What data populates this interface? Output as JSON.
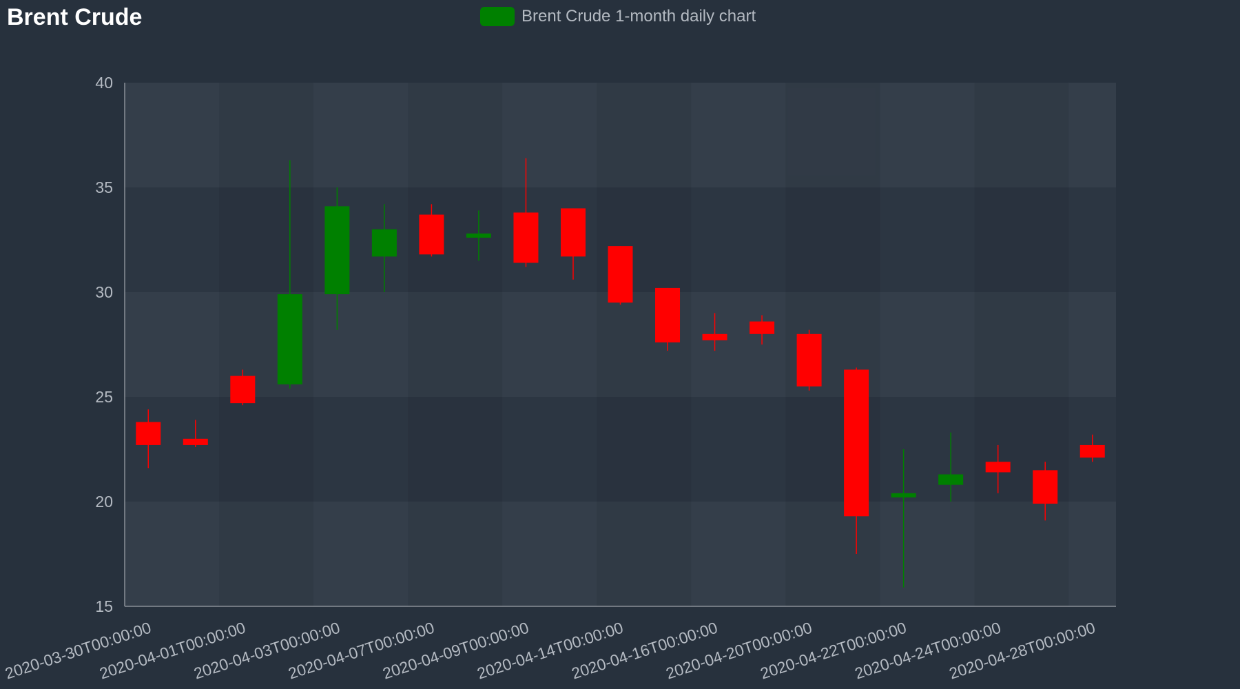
{
  "colors": {
    "background": "#27313d",
    "up": "#008000",
    "down": "#ff0000",
    "axis_text": "#b4bac2",
    "title": "#ffffff",
    "plot_band_light": "#343e4a",
    "plot_band_dark": "#2c3642",
    "axis_line": "#8a9098"
  },
  "chart_data": {
    "type": "candlestick",
    "title": "Brent Crude",
    "legend": [
      {
        "name": "Brent Crude 1-month daily chart",
        "color": "#008000"
      }
    ],
    "legend_position": "top-center",
    "xlabel": "",
    "ylabel": "",
    "ylim": [
      15,
      40
    ],
    "yticks": [
      15,
      20,
      25,
      30,
      35,
      40
    ],
    "grid": true,
    "xtick_labels": [
      "2020-03-30T00:00:00",
      "2020-04-01T00:00:00",
      "2020-04-03T00:00:00",
      "2020-04-07T00:00:00",
      "2020-04-09T00:00:00",
      "2020-04-14T00:00:00",
      "2020-04-16T00:00:00",
      "2020-04-20T00:00:00",
      "2020-04-22T00:00:00",
      "2020-04-24T00:00:00",
      "2020-04-28T00:00:00"
    ],
    "candles": [
      {
        "date": "2020-03-30",
        "open": 23.8,
        "high": 24.4,
        "low": 21.6,
        "close": 22.7
      },
      {
        "date": "2020-03-31",
        "open": 23.0,
        "high": 23.9,
        "low": 22.6,
        "close": 22.7
      },
      {
        "date": "2020-04-01",
        "open": 26.0,
        "high": 26.3,
        "low": 24.6,
        "close": 24.7
      },
      {
        "date": "2020-04-02",
        "open": 25.6,
        "high": 36.3,
        "low": 25.4,
        "close": 29.9
      },
      {
        "date": "2020-04-03",
        "open": 29.9,
        "high": 35.0,
        "low": 28.2,
        "close": 34.1
      },
      {
        "date": "2020-04-06",
        "open": 31.7,
        "high": 34.2,
        "low": 30.0,
        "close": 33.0
      },
      {
        "date": "2020-04-07",
        "open": 33.7,
        "high": 34.2,
        "low": 31.7,
        "close": 31.8
      },
      {
        "date": "2020-04-08",
        "open": 32.6,
        "high": 33.9,
        "low": 31.5,
        "close": 32.8
      },
      {
        "date": "2020-04-09",
        "open": 33.8,
        "high": 36.4,
        "low": 31.2,
        "close": 31.4
      },
      {
        "date": "2020-04-14",
        "open": 34.0,
        "high": 34.0,
        "low": 30.6,
        "close": 31.7
      },
      {
        "date": "2020-04-15",
        "open": 32.2,
        "high": 32.2,
        "low": 29.4,
        "close": 29.5
      },
      {
        "date": "2020-04-16",
        "open": 30.2,
        "high": 30.2,
        "low": 27.2,
        "close": 27.6
      },
      {
        "date": "2020-04-17",
        "open": 28.0,
        "high": 29.0,
        "low": 27.2,
        "close": 27.7
      },
      {
        "date": "2020-04-20",
        "open": 28.6,
        "high": 28.9,
        "low": 27.5,
        "close": 28.0
      },
      {
        "date": "2020-04-21",
        "open": 28.0,
        "high": 28.2,
        "low": 25.3,
        "close": 25.5
      },
      {
        "date": "2020-04-22",
        "open": 26.3,
        "high": 26.4,
        "low": 17.5,
        "close": 19.3
      },
      {
        "date": "2020-04-23",
        "open": 20.2,
        "high": 22.5,
        "low": 15.9,
        "close": 20.4
      },
      {
        "date": "2020-04-24",
        "open": 20.8,
        "high": 23.3,
        "low": 20.0,
        "close": 21.3
      },
      {
        "date": "2020-04-27",
        "open": 21.9,
        "high": 22.7,
        "low": 20.4,
        "close": 21.4
      },
      {
        "date": "2020-04-28",
        "open": 21.5,
        "high": 21.9,
        "low": 19.1,
        "close": 19.9
      },
      {
        "date": "2020-04-29",
        "open": 22.7,
        "high": 23.2,
        "low": 21.9,
        "close": 22.1
      }
    ]
  }
}
